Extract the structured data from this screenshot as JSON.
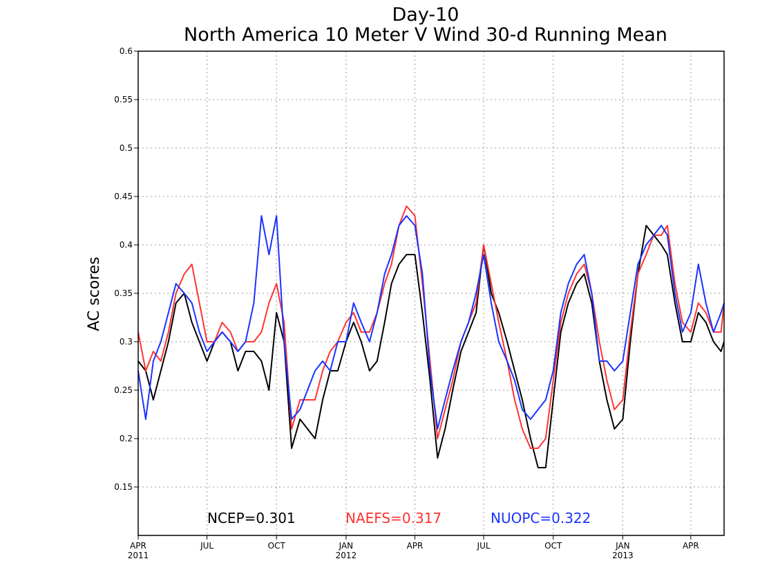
{
  "chart_data": {
    "type": "line",
    "title": "Day-10",
    "subtitle": "North America 10 Meter V Wind 30-d Running Mean",
    "xlabel": "",
    "ylabel": "AC scores",
    "ylim": [
      0.1,
      0.6
    ],
    "yticks": [
      0.15,
      0.2,
      0.25,
      0.3,
      0.35,
      0.4,
      0.45,
      0.5,
      0.55,
      0.6
    ],
    "ytick_labels": [
      "0.15",
      "0.2",
      "0.25",
      "0.3",
      "0.35",
      "0.4",
      "0.45",
      "0.5",
      "0.55",
      "0.6"
    ],
    "xlim": [
      "2011-04-01",
      "2013-05-15"
    ],
    "xticks": [
      {
        "date": "2011-04-01",
        "month": "APR",
        "year": "2011"
      },
      {
        "date": "2011-07-01",
        "month": "JUL",
        "year": ""
      },
      {
        "date": "2011-10-01",
        "month": "OCT",
        "year": ""
      },
      {
        "date": "2012-01-01",
        "month": "JAN",
        "year": "2012"
      },
      {
        "date": "2012-04-01",
        "month": "APR",
        "year": ""
      },
      {
        "date": "2012-07-01",
        "month": "JUL",
        "year": ""
      },
      {
        "date": "2012-10-01",
        "month": "OCT",
        "year": ""
      },
      {
        "date": "2013-01-01",
        "month": "JAN",
        "year": "2013"
      },
      {
        "date": "2013-04-01",
        "month": "APR",
        "year": ""
      }
    ],
    "grid": true,
    "legend_position": "bottom",
    "series": [
      {
        "name": "NCEP",
        "legend_text": "NCEP=0.301",
        "color": "#000000",
        "x": [
          "2011-04-01",
          "2011-04-11",
          "2011-04-21",
          "2011-05-01",
          "2011-05-11",
          "2011-05-21",
          "2011-06-01",
          "2011-06-11",
          "2011-06-21",
          "2011-07-01",
          "2011-07-11",
          "2011-07-21",
          "2011-08-01",
          "2011-08-11",
          "2011-08-21",
          "2011-09-01",
          "2011-09-11",
          "2011-09-21",
          "2011-10-01",
          "2011-10-11",
          "2011-10-21",
          "2011-11-01",
          "2011-11-11",
          "2011-11-21",
          "2011-12-01",
          "2011-12-11",
          "2011-12-21",
          "2012-01-01",
          "2012-01-11",
          "2012-01-21",
          "2012-02-01",
          "2012-02-11",
          "2012-02-21",
          "2012-03-01",
          "2012-03-11",
          "2012-03-21",
          "2012-04-01",
          "2012-04-11",
          "2012-04-21",
          "2012-05-01",
          "2012-05-11",
          "2012-05-21",
          "2012-06-01",
          "2012-06-11",
          "2012-06-21",
          "2012-07-01",
          "2012-07-11",
          "2012-07-21",
          "2012-08-01",
          "2012-08-11",
          "2012-08-21",
          "2012-09-01",
          "2012-09-11",
          "2012-09-21",
          "2012-10-01",
          "2012-10-11",
          "2012-10-21",
          "2012-11-01",
          "2012-11-11",
          "2012-11-21",
          "2012-12-01",
          "2012-12-11",
          "2012-12-21",
          "2013-01-01",
          "2013-01-11",
          "2013-01-21",
          "2013-02-01",
          "2013-02-11",
          "2013-02-21",
          "2013-03-01",
          "2013-03-11",
          "2013-03-21",
          "2013-04-01",
          "2013-04-11",
          "2013-04-21",
          "2013-05-01",
          "2013-05-11",
          "2013-05-15"
        ],
        "values": [
          0.28,
          0.27,
          0.24,
          0.27,
          0.3,
          0.34,
          0.35,
          0.32,
          0.3,
          0.28,
          0.3,
          0.31,
          0.3,
          0.27,
          0.29,
          0.29,
          0.28,
          0.25,
          0.33,
          0.3,
          0.19,
          0.22,
          0.21,
          0.2,
          0.24,
          0.27,
          0.27,
          0.3,
          0.32,
          0.3,
          0.27,
          0.28,
          0.32,
          0.36,
          0.38,
          0.39,
          0.39,
          0.33,
          0.26,
          0.18,
          0.21,
          0.25,
          0.29,
          0.31,
          0.33,
          0.4,
          0.35,
          0.33,
          0.3,
          0.27,
          0.24,
          0.2,
          0.17,
          0.17,
          0.24,
          0.31,
          0.34,
          0.36,
          0.37,
          0.34,
          0.28,
          0.24,
          0.21,
          0.22,
          0.3,
          0.37,
          0.42,
          0.41,
          0.4,
          0.39,
          0.34,
          0.3,
          0.3,
          0.33,
          0.32,
          0.3,
          0.29,
          0.3
        ]
      },
      {
        "name": "NAEFS",
        "legend_text": "NAEFS=0.317",
        "color": "#ff3333",
        "x": [
          "2011-04-01",
          "2011-04-11",
          "2011-04-21",
          "2011-05-01",
          "2011-05-11",
          "2011-05-21",
          "2011-06-01",
          "2011-06-11",
          "2011-06-21",
          "2011-07-01",
          "2011-07-11",
          "2011-07-21",
          "2011-08-01",
          "2011-08-11",
          "2011-08-21",
          "2011-09-01",
          "2011-09-11",
          "2011-09-21",
          "2011-10-01",
          "2011-10-11",
          "2011-10-21",
          "2011-11-01",
          "2011-11-11",
          "2011-11-21",
          "2011-12-01",
          "2011-12-11",
          "2011-12-21",
          "2012-01-01",
          "2012-01-11",
          "2012-01-21",
          "2012-02-01",
          "2012-02-11",
          "2012-02-21",
          "2012-03-01",
          "2012-03-11",
          "2012-03-21",
          "2012-04-01",
          "2012-04-11",
          "2012-04-21",
          "2012-05-01",
          "2012-05-11",
          "2012-05-21",
          "2012-06-01",
          "2012-06-11",
          "2012-06-21",
          "2012-07-01",
          "2012-07-11",
          "2012-07-21",
          "2012-08-01",
          "2012-08-11",
          "2012-08-21",
          "2012-09-01",
          "2012-09-11",
          "2012-09-21",
          "2012-10-01",
          "2012-10-11",
          "2012-10-21",
          "2012-11-01",
          "2012-11-11",
          "2012-11-21",
          "2012-12-01",
          "2012-12-11",
          "2012-12-21",
          "2013-01-01",
          "2013-01-11",
          "2013-01-21",
          "2013-02-01",
          "2013-02-11",
          "2013-02-21",
          "2013-03-01",
          "2013-03-11",
          "2013-03-21",
          "2013-04-01",
          "2013-04-11",
          "2013-04-21",
          "2013-05-01",
          "2013-05-11",
          "2013-05-15"
        ],
        "values": [
          0.31,
          0.27,
          0.29,
          0.28,
          0.31,
          0.35,
          0.37,
          0.38,
          0.34,
          0.3,
          0.3,
          0.32,
          0.31,
          0.29,
          0.3,
          0.3,
          0.31,
          0.34,
          0.36,
          0.32,
          0.21,
          0.24,
          0.24,
          0.24,
          0.27,
          0.29,
          0.3,
          0.32,
          0.33,
          0.31,
          0.31,
          0.33,
          0.36,
          0.38,
          0.42,
          0.44,
          0.43,
          0.36,
          0.28,
          0.2,
          0.23,
          0.26,
          0.3,
          0.32,
          0.34,
          0.4,
          0.36,
          0.32,
          0.28,
          0.24,
          0.21,
          0.19,
          0.19,
          0.2,
          0.26,
          0.32,
          0.35,
          0.37,
          0.38,
          0.35,
          0.3,
          0.26,
          0.23,
          0.24,
          0.31,
          0.37,
          0.39,
          0.41,
          0.41,
          0.42,
          0.36,
          0.32,
          0.31,
          0.34,
          0.33,
          0.31,
          0.31,
          0.34
        ]
      },
      {
        "name": "NUOPC",
        "legend_text": "NUOPC=0.322",
        "color": "#1a33ff",
        "x": [
          "2011-04-01",
          "2011-04-11",
          "2011-04-21",
          "2011-05-01",
          "2011-05-11",
          "2011-05-21",
          "2011-06-01",
          "2011-06-11",
          "2011-06-21",
          "2011-07-01",
          "2011-07-11",
          "2011-07-21",
          "2011-08-01",
          "2011-08-11",
          "2011-08-21",
          "2011-09-01",
          "2011-09-11",
          "2011-09-21",
          "2011-10-01",
          "2011-10-11",
          "2011-10-21",
          "2011-11-01",
          "2011-11-11",
          "2011-11-21",
          "2011-12-01",
          "2011-12-11",
          "2011-12-21",
          "2012-01-01",
          "2012-01-11",
          "2012-01-21",
          "2012-02-01",
          "2012-02-11",
          "2012-02-21",
          "2012-03-01",
          "2012-03-11",
          "2012-03-21",
          "2012-04-01",
          "2012-04-11",
          "2012-04-21",
          "2012-05-01",
          "2012-05-11",
          "2012-05-21",
          "2012-06-01",
          "2012-06-11",
          "2012-06-21",
          "2012-07-01",
          "2012-07-11",
          "2012-07-21",
          "2012-08-01",
          "2012-08-11",
          "2012-08-21",
          "2012-09-01",
          "2012-09-11",
          "2012-09-21",
          "2012-10-01",
          "2012-10-11",
          "2012-10-21",
          "2012-11-01",
          "2012-11-11",
          "2012-11-21",
          "2012-12-01",
          "2012-12-11",
          "2012-12-21",
          "2013-01-01",
          "2013-01-11",
          "2013-01-21",
          "2013-02-01",
          "2013-02-11",
          "2013-02-21",
          "2013-03-01",
          "2013-03-11",
          "2013-03-21",
          "2013-04-01",
          "2013-04-11",
          "2013-04-21",
          "2013-05-01",
          "2013-05-11",
          "2013-05-15"
        ],
        "values": [
          0.27,
          0.22,
          0.28,
          0.3,
          0.33,
          0.36,
          0.35,
          0.34,
          0.31,
          0.29,
          0.3,
          0.31,
          0.3,
          0.29,
          0.3,
          0.34,
          0.43,
          0.39,
          0.43,
          0.3,
          0.22,
          0.23,
          0.25,
          0.27,
          0.28,
          0.27,
          0.3,
          0.3,
          0.34,
          0.32,
          0.3,
          0.33,
          0.37,
          0.39,
          0.42,
          0.43,
          0.42,
          0.37,
          0.27,
          0.21,
          0.24,
          0.27,
          0.3,
          0.32,
          0.35,
          0.39,
          0.34,
          0.3,
          0.28,
          0.26,
          0.23,
          0.22,
          0.23,
          0.24,
          0.27,
          0.33,
          0.36,
          0.38,
          0.39,
          0.35,
          0.28,
          0.28,
          0.27,
          0.28,
          0.33,
          0.38,
          0.4,
          0.41,
          0.42,
          0.41,
          0.35,
          0.31,
          0.33,
          0.38,
          0.34,
          0.31,
          0.33,
          0.34
        ]
      }
    ]
  }
}
